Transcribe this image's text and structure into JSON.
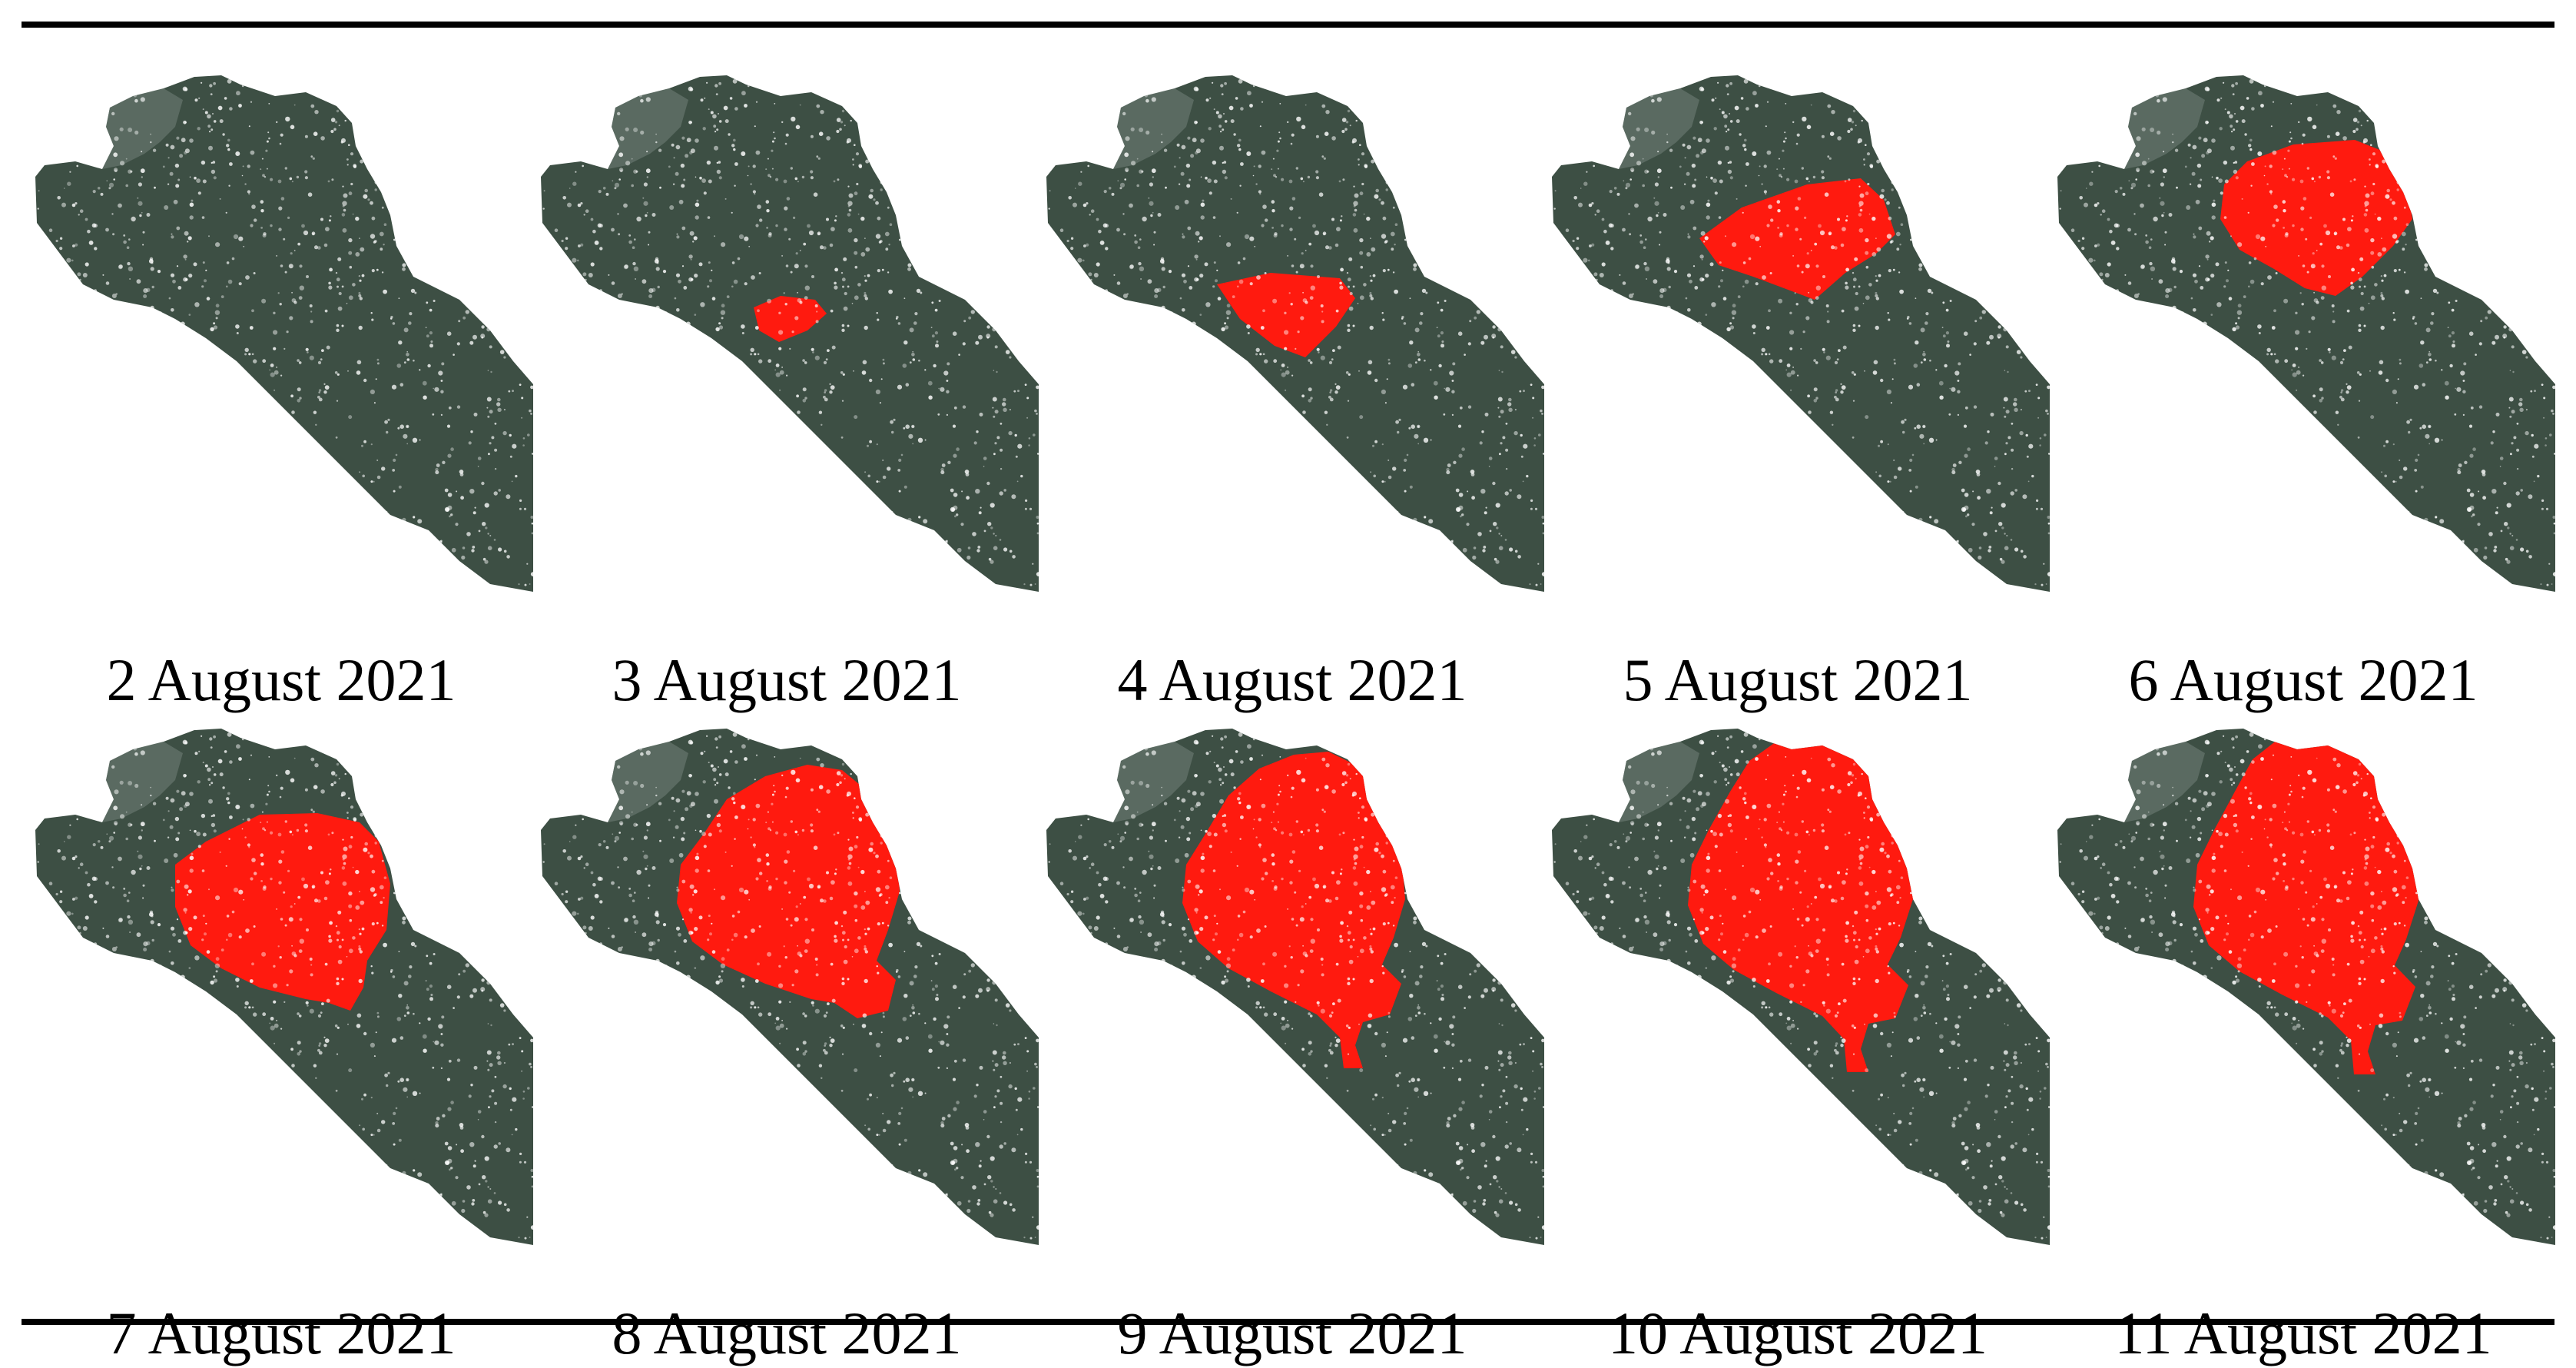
{
  "colors": {
    "forest": "#3d4f44",
    "forest_light": "#7e8c84",
    "burned": "#ff1a0f",
    "background": "#ffffff",
    "rule": "#000000"
  },
  "panels": [
    {
      "date": "2 August 2021",
      "burned_stage": 0
    },
    {
      "date": "3 August 2021",
      "burned_stage": 1
    },
    {
      "date": "4 August 2021",
      "burned_stage": 2
    },
    {
      "date": "5 August 2021",
      "burned_stage": 3
    },
    {
      "date": "6 August 2021",
      "burned_stage": 4
    },
    {
      "date": "7 August 2021",
      "burned_stage": 5
    },
    {
      "date": "8 August 2021",
      "burned_stage": 6
    },
    {
      "date": "9 August 2021",
      "burned_stage": 7
    },
    {
      "date": "10 August 2021",
      "burned_stage": 8
    },
    {
      "date": "11 August 2021",
      "burned_stage": 9
    }
  ]
}
